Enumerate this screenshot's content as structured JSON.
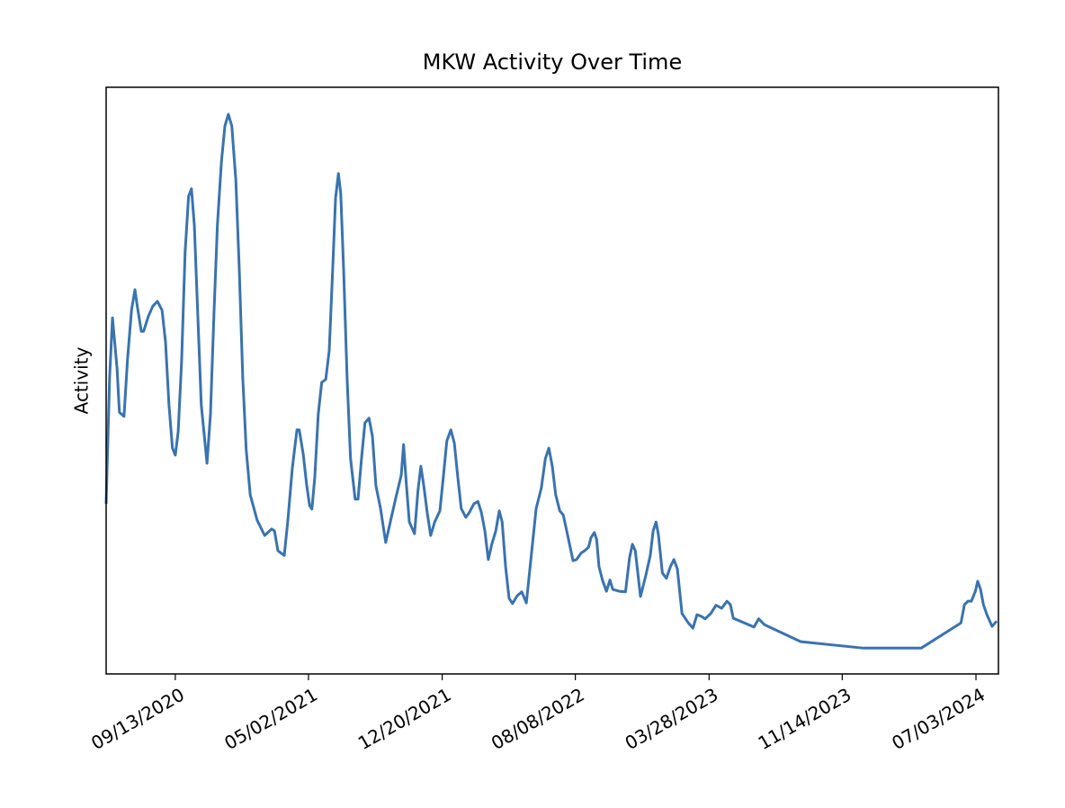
{
  "chart_data": {
    "type": "line",
    "title": "MKW Activity Over Time",
    "y_label": "Activity",
    "color": "#3a73ae",
    "xlim": [
      "2020-05-16",
      "2024-08-11"
    ],
    "xticks": [
      {
        "value": "2020-09-13",
        "label": "09/13/2020"
      },
      {
        "value": "2021-05-02",
        "label": "05/02/2021"
      },
      {
        "value": "2021-12-20",
        "label": "12/20/2021"
      },
      {
        "value": "2022-08-08",
        "label": "08/08/2022"
      },
      {
        "value": "2023-03-28",
        "label": "03/28/2023"
      },
      {
        "value": "2023-11-14",
        "label": "11/14/2023"
      },
      {
        "value": "2024-07-03",
        "label": "07/03/2024"
      }
    ],
    "ylim": [
      0,
      100
    ],
    "x": [
      "2020-05-16",
      "2020-05-22",
      "2020-05-27",
      "2020-06-04",
      "2020-06-08",
      "2020-06-16",
      "2020-06-22",
      "2020-06-29",
      "2020-07-05",
      "2020-07-09",
      "2020-07-16",
      "2020-07-20",
      "2020-07-28",
      "2020-08-05",
      "2020-08-13",
      "2020-08-21",
      "2020-08-27",
      "2020-09-02",
      "2020-09-08",
      "2020-09-13",
      "2020-09-18",
      "2020-09-24",
      "2020-09-30",
      "2020-10-06",
      "2020-10-11",
      "2020-10-16",
      "2020-10-22",
      "2020-10-28",
      "2020-11-07",
      "2020-11-13",
      "2020-11-19",
      "2020-11-25",
      "2020-12-02",
      "2020-12-08",
      "2020-12-14",
      "2020-12-20",
      "2020-12-27",
      "2021-01-02",
      "2021-01-08",
      "2021-01-14",
      "2021-01-21",
      "2021-02-02",
      "2021-02-15",
      "2021-02-27",
      "2021-03-04",
      "2021-03-10",
      "2021-03-21",
      "2021-03-27",
      "2021-04-04",
      "2021-04-12",
      "2021-04-16",
      "2021-04-23",
      "2021-04-29",
      "2021-05-04",
      "2021-05-08",
      "2021-05-13",
      "2021-05-19",
      "2021-05-25",
      "2021-06-01",
      "2021-06-07",
      "2021-06-13",
      "2021-06-18",
      "2021-06-23",
      "2021-06-27",
      "2021-07-02",
      "2021-07-08",
      "2021-07-14",
      "2021-07-22",
      "2021-07-27",
      "2021-08-02",
      "2021-08-08",
      "2021-08-15",
      "2021-08-21",
      "2021-08-27",
      "2021-09-04",
      "2021-09-13",
      "2021-09-21",
      "2021-09-30",
      "2021-10-10",
      "2021-10-14",
      "2021-10-19",
      "2021-10-24",
      "2021-11-02",
      "2021-11-08",
      "2021-11-13",
      "2021-11-18",
      "2021-11-24",
      "2021-11-30",
      "2021-12-07",
      "2021-12-16",
      "2021-12-22",
      "2021-12-28",
      "2022-01-04",
      "2022-01-10",
      "2022-01-16",
      "2022-01-22",
      "2022-01-30",
      "2022-02-05",
      "2022-02-13",
      "2022-02-20",
      "2022-02-26",
      "2022-03-04",
      "2022-03-10",
      "2022-03-16",
      "2022-03-23",
      "2022-03-29",
      "2022-04-03",
      "2022-04-09",
      "2022-04-15",
      "2022-04-21",
      "2022-04-29",
      "2022-05-07",
      "2022-05-15",
      "2022-05-24",
      "2022-06-01",
      "2022-06-10",
      "2022-06-17",
      "2022-06-23",
      "2022-06-29",
      "2022-07-05",
      "2022-07-12",
      "2022-07-18",
      "2022-07-24",
      "2022-08-04",
      "2022-08-10",
      "2022-08-18",
      "2022-08-24",
      "2022-08-31",
      "2022-09-04",
      "2022-09-10",
      "2022-09-14",
      "2022-09-18",
      "2022-09-24",
      "2022-10-01",
      "2022-10-07",
      "2022-10-12",
      "2022-10-23",
      "2022-11-03",
      "2022-11-10",
      "2022-11-15",
      "2022-11-20",
      "2022-11-29",
      "2022-12-08",
      "2022-12-16",
      "2022-12-21",
      "2022-12-26",
      "2022-12-30",
      "2023-01-06",
      "2023-01-13",
      "2023-01-20",
      "2023-01-26",
      "2023-02-01",
      "2023-02-09",
      "2023-02-20",
      "2023-02-28",
      "2023-03-07",
      "2023-03-15",
      "2023-03-21",
      "2023-03-31",
      "2023-04-09",
      "2023-04-19",
      "2023-04-28",
      "2023-05-04",
      "2023-05-09",
      "2023-06-14",
      "2023-06-22",
      "2023-07-02",
      "2023-09-03",
      "2023-12-21",
      "2024-03-30",
      "2024-06-07",
      "2024-06-13",
      "2024-06-19",
      "2024-06-25",
      "2024-07-02",
      "2024-07-06",
      "2024-07-11",
      "2024-07-16",
      "2024-07-22",
      "2024-07-31",
      "2024-08-08"
    ],
    "values": [
      29.0,
      50.5,
      60.7,
      52.0,
      44.6,
      43.9,
      53.5,
      62.0,
      65.5,
      62.7,
      58.4,
      58.4,
      60.9,
      62.7,
      63.5,
      62.0,
      56.6,
      45.9,
      38.5,
      37.3,
      41.3,
      53.5,
      71.9,
      81.4,
      82.7,
      76.5,
      61.2,
      45.9,
      35.9,
      44.3,
      61.2,
      76.5,
      87.3,
      93.4,
      95.4,
      93.4,
      84.2,
      68.9,
      50.5,
      38.2,
      30.5,
      26.2,
      23.6,
      24.7,
      24.4,
      21.0,
      20.2,
      25.9,
      35.1,
      41.6,
      41.6,
      37.4,
      32.1,
      28.7,
      28.1,
      33.6,
      44.3,
      49.7,
      50.2,
      55.1,
      68.9,
      81.1,
      85.3,
      81.9,
      68.9,
      50.5,
      36.7,
      29.8,
      29.8,
      36.7,
      42.8,
      43.6,
      40.5,
      32.1,
      28.2,
      22.4,
      25.9,
      29.8,
      33.9,
      39.1,
      32.1,
      25.9,
      23.9,
      31.3,
      35.4,
      32.1,
      27.5,
      23.6,
      25.9,
      27.8,
      33.6,
      39.7,
      41.6,
      39.4,
      33.6,
      28.2,
      26.7,
      27.5,
      29.0,
      29.4,
      27.5,
      24.4,
      19.5,
      22.1,
      24.4,
      27.8,
      25.9,
      18.3,
      12.9,
      12.0,
      13.3,
      14.0,
      12.1,
      20.6,
      28.2,
      31.7,
      36.7,
      38.5,
      35.4,
      30.5,
      27.8,
      27.1,
      24.4,
      19.3,
      19.5,
      20.6,
      21.0,
      21.6,
      23.2,
      24.1,
      22.9,
      18.3,
      16.0,
      14.1,
      16.0,
      14.4,
      14.1,
      14.0,
      19.8,
      22.1,
      21.0,
      13.2,
      16.7,
      20.2,
      24.4,
      25.9,
      23.8,
      17.2,
      16.3,
      18.3,
      19.5,
      17.9,
      10.3,
      8.7,
      7.8,
      10.1,
      9.8,
      9.4,
      10.3,
      11.7,
      11.2,
      12.4,
      11.8,
      9.5,
      8.0,
      9.4,
      8.4,
      5.5,
      4.4,
      4.4,
      8.7,
      11.8,
      12.4,
      12.4,
      14.1,
      15.8,
      14.4,
      11.8,
      10.1,
      8.1,
      9.0
    ]
  }
}
